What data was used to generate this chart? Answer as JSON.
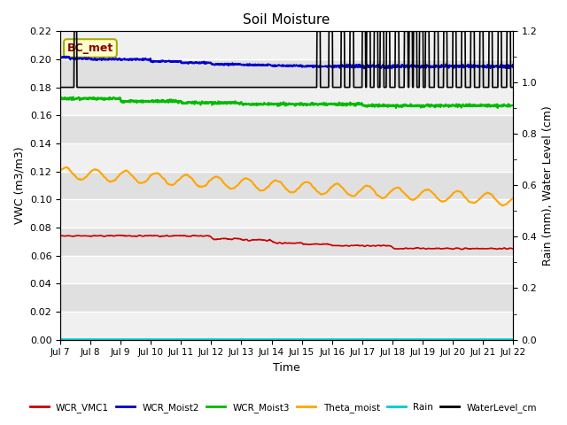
{
  "title": "Soil Moisture",
  "xlabel": "Time",
  "ylabel_left": "VWC (m3/m3)",
  "ylabel_right": "Rain (mm), Water Level (cm)",
  "ylim_left": [
    0.0,
    0.22
  ],
  "ylim_right": [
    0.0,
    1.2
  ],
  "x_tick_labels": [
    "Jul 7",
    "Jul 8",
    "Jul 9",
    "Jul 10",
    "Jul 11",
    "Jul 12",
    "Jul 13",
    "Jul 14",
    "Jul 15",
    "Jul 16",
    "Jul 17",
    "Jul 18",
    "Jul 19",
    "Jul 20",
    "Jul 21",
    "Jul 22"
  ],
  "bg_color_light": "#f0f0f0",
  "bg_color_dark": "#e0e0e0",
  "annotation_text": "BC_met",
  "annotation_color": "#8B0000",
  "annotation_bg": "#ffffcc",
  "series": {
    "WCR_VMC1": {
      "color": "#cc0000",
      "lw": 1.2
    },
    "WCR_Moist2": {
      "color": "#0000cc",
      "lw": 1.5
    },
    "WCR_Moist3": {
      "color": "#00bb00",
      "lw": 1.5
    },
    "Theta_moist": {
      "color": "#ffa500",
      "lw": 1.5
    },
    "Rain": {
      "color": "#00cccc",
      "lw": 1.5
    },
    "WaterLevel_cm": {
      "color": "#000000",
      "lw": 1.2
    }
  }
}
